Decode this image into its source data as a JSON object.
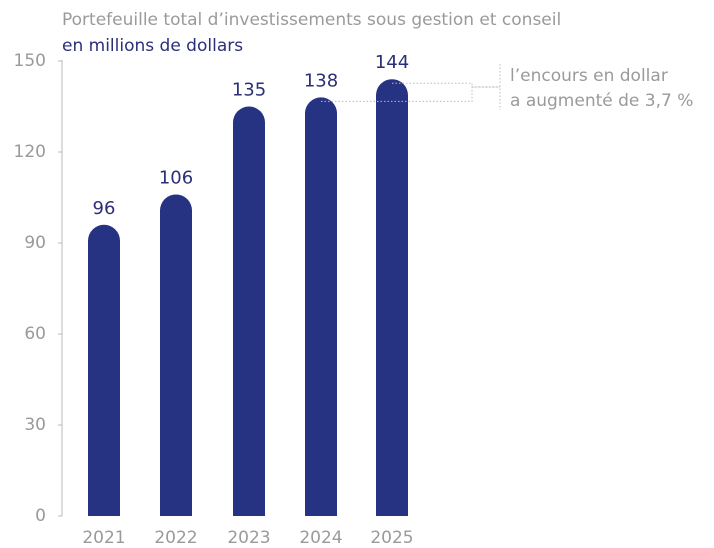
{
  "chart_data": {
    "type": "bar",
    "title": "Portefeuille total d’investissements sous gestion et conseil",
    "subtitle": "en millions de dollars",
    "categories": [
      "2021",
      "2022",
      "2023",
      "2024",
      "2025"
    ],
    "values": [
      96,
      106,
      135,
      138,
      144
    ],
    "color": "#263282",
    "ylim": [
      0,
      150
    ],
    "yticks": [
      0,
      30,
      60,
      90,
      120,
      150
    ],
    "grid": false,
    "annotation": [
      "l’encours en dollar",
      "a augmenté de 3,7 %"
    ]
  }
}
